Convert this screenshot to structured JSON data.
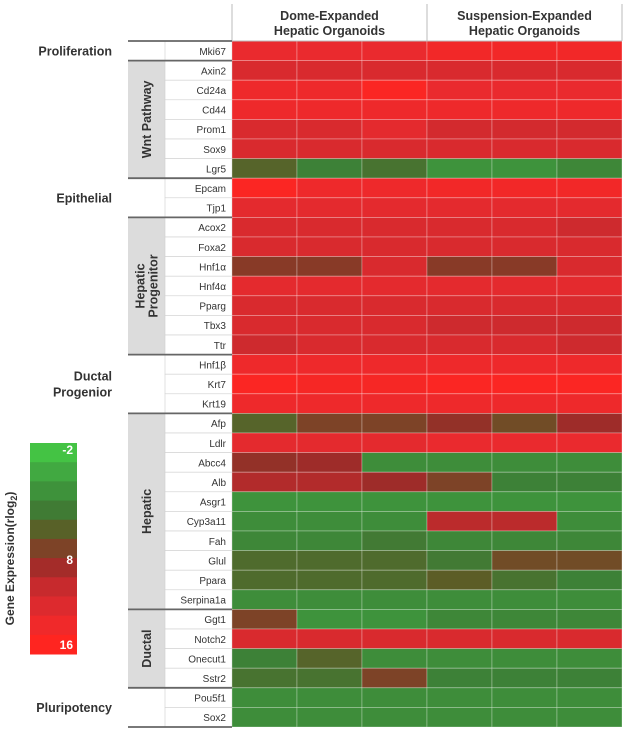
{
  "chart_data": {
    "type": "heatmap",
    "title": "",
    "column_groups": [
      {
        "line1": "Dome-Expanded",
        "line2": "Hepatic Organoids",
        "replicates": 3
      },
      {
        "line1": "Suspension-Expanded",
        "line2": "Hepatic Organoids",
        "replicates": 3
      }
    ],
    "row_groups": [
      {
        "label": [
          "Proliferation"
        ],
        "orientation": "horizontal",
        "genes": [
          "Mki67"
        ]
      },
      {
        "label": [
          "Wnt Pathway"
        ],
        "orientation": "vertical",
        "genes": [
          "Axin2",
          "Cd24a",
          "Cd44",
          "Prom1",
          "Sox9",
          "Lgr5"
        ]
      },
      {
        "label": [
          "Epithelial"
        ],
        "orientation": "horizontal",
        "genes": [
          "Epcam",
          "Tjp1"
        ]
      },
      {
        "label": [
          "Hepatic",
          "Progenitor"
        ],
        "orientation": "vertical",
        "genes": [
          "Acox2",
          "Foxa2",
          "Hnf1α",
          "Hnf4α",
          "Pparg",
          "Tbx3",
          "Ttr"
        ]
      },
      {
        "label": [
          "Ductal",
          "Progenior"
        ],
        "orientation": "horizontal",
        "genes": [
          "Hnf1β",
          "Krt7",
          "Krt19"
        ]
      },
      {
        "label": [
          "Hepatic"
        ],
        "orientation": "vertical",
        "genes": [
          "Afp",
          "Ldlr",
          "Abcc4",
          "Alb",
          "Asgr1",
          "Cyp3a11",
          "Fah",
          "Glul",
          "Ppara",
          "Serpina1a"
        ]
      },
      {
        "label": [
          "Ductal"
        ],
        "orientation": "vertical",
        "genes": [
          "Ggt1",
          "Notch2",
          "Onecut1",
          "Sstr2"
        ]
      },
      {
        "label": [
          "Pluripotency"
        ],
        "orientation": "horizontal",
        "genes": [
          "Pou5f1",
          "Sox2"
        ]
      }
    ],
    "values": [
      [
        13.5,
        13.5,
        13.5,
        14.5,
        14.5,
        14.5
      ],
      [
        12,
        12,
        12,
        12,
        12,
        12
      ],
      [
        14,
        14,
        15.5,
        13.5,
        13.5,
        13.5
      ],
      [
        14,
        14,
        14,
        14,
        14,
        14
      ],
      [
        12,
        12,
        13,
        11.5,
        11.5,
        11.5
      ],
      [
        12,
        12,
        12,
        12,
        12,
        12
      ],
      [
        5,
        3,
        4,
        1.5,
        1.5,
        2.5
      ],
      [
        15.5,
        14,
        14,
        14.5,
        14.5,
        14.5
      ],
      [
        13,
        13,
        13,
        13,
        13,
        13
      ],
      [
        12,
        12,
        12,
        12,
        12,
        11
      ],
      [
        12,
        12,
        12,
        12,
        12,
        12
      ],
      [
        7.5,
        7.5,
        12,
        7.5,
        7.5,
        12
      ],
      [
        13,
        13,
        13,
        13,
        13,
        13
      ],
      [
        12,
        12,
        12,
        12,
        12,
        12
      ],
      [
        12,
        12,
        12,
        11,
        11,
        11
      ],
      [
        11,
        12,
        12,
        12,
        12,
        11
      ],
      [
        14,
        14,
        14,
        14,
        14,
        14
      ],
      [
        15.5,
        15,
        15,
        15.5,
        15.5,
        15.5
      ],
      [
        14,
        14,
        14,
        14,
        14,
        14
      ],
      [
        5,
        7,
        7,
        8,
        6.5,
        8.5
      ],
      [
        13,
        13,
        13,
        13.5,
        13.5,
        13.5
      ],
      [
        8,
        8.5,
        2,
        2,
        2,
        2
      ],
      [
        9.5,
        9.5,
        8.5,
        7,
        3,
        3
      ],
      [
        1.5,
        1.5,
        1.5,
        1.5,
        1.5,
        1.5
      ],
      [
        2,
        2,
        2,
        10,
        10,
        2
      ],
      [
        2.5,
        2.5,
        3.5,
        2.5,
        2.5,
        2.5
      ],
      [
        4.5,
        4.5,
        4.5,
        3.5,
        6.5,
        6.5
      ],
      [
        4.5,
        4.5,
        4.5,
        5.5,
        4,
        3
      ],
      [
        2,
        2,
        2,
        2,
        2,
        2
      ],
      [
        7,
        1.5,
        1.5,
        2.5,
        2.5,
        2.5
      ],
      [
        12,
        12,
        12,
        12,
        12,
        12
      ],
      [
        3,
        5,
        2,
        2,
        2,
        2
      ],
      [
        4,
        4,
        7,
        3,
        3,
        3
      ],
      [
        2,
        2,
        2,
        2,
        2,
        2
      ],
      [
        2,
        2,
        2,
        2,
        2,
        2
      ]
    ],
    "color_scale": {
      "min": -2,
      "max": 16,
      "ticks": [
        -2,
        8,
        16
      ],
      "title": "Gene Expression(rlog",
      "title_subscript": "2",
      "title_suffix": ")",
      "stops": [
        "#44c344",
        "#3f9e3f",
        "#3d7f36",
        "#5f5a25",
        "#9a2c28",
        "#cc2a2e",
        "#e92a2e",
        "#ff2520"
      ]
    }
  }
}
